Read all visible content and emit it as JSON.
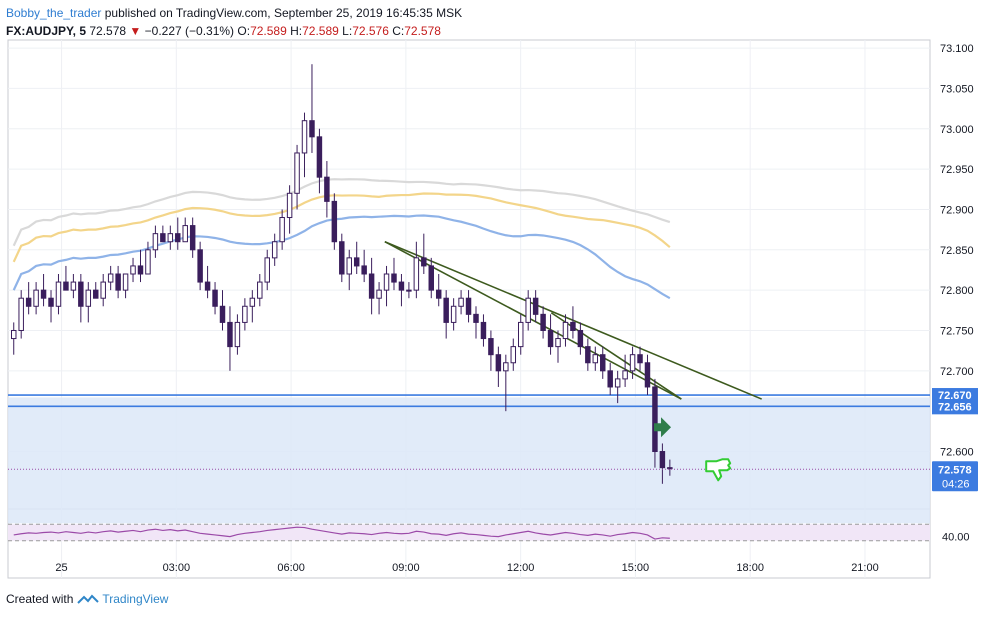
{
  "header": {
    "author": "Bobby_the_trader",
    "published": "published on TradingView.com, September 25, 2019 16:45:35 MSK",
    "symbol": "FX:AUDJPY, 5",
    "last": "72.578",
    "change": "−0.227 (−0.31%)",
    "o_label": "O:",
    "o": "72.589",
    "h_label": "H:",
    "h": "72.589",
    "l_label": "L:",
    "l": "72.576",
    "c_label": "C:",
    "c": "72.578"
  },
  "footer": {
    "created_with": "Created with",
    "brand": "TradingView"
  },
  "colors": {
    "up": "#4a2a72",
    "down": "#3a1e5c",
    "wick": "#3a1e5c",
    "ma_fast": "#8fb3e8",
    "ma_mid": "#f3d58a",
    "ma_slow": "#d9d9d9",
    "trend": "#3d5a1e",
    "level": "#3c7be0",
    "zone": "#dce8f8",
    "rsi": "#9b4aa8",
    "rsi_band": "#f1e6f7",
    "price_label": "#3c7be0",
    "signal_arrow": "#2e7d4a",
    "thumb": "#33cc33"
  },
  "chart_data": {
    "type": "candlestick",
    "ylim": [
      72.53,
      73.11
    ],
    "y_ticks": [
      "73.100",
      "73.050",
      "73.000",
      "72.950",
      "72.900",
      "72.850",
      "72.800",
      "72.750",
      "72.700",
      "72.600"
    ],
    "x_ticks": [
      "25",
      "03:00",
      "06:00",
      "09:00",
      "12:00",
      "15:00",
      "18:00",
      "21:00"
    ],
    "x_tick_hours": [
      0,
      3,
      6,
      9,
      12,
      15,
      18,
      21
    ],
    "x_range_hours": [
      -1.4,
      22.7
    ],
    "levels": [
      72.67,
      72.656
    ],
    "level_labels": [
      "72.670",
      "72.656"
    ],
    "current_price": 72.578,
    "current_label": "72.578",
    "countdown": "04:26",
    "zone": [
      72.511,
      72.667
    ],
    "rsi_tick": "40.00",
    "rsi_bands": [
      70,
      30
    ],
    "trendlines": [
      {
        "from": [
          8.45,
          72.86
        ],
        "to": [
          18.3,
          72.665
        ]
      },
      {
        "from": [
          8.45,
          72.86
        ],
        "to": [
          16.2,
          72.665
        ]
      },
      {
        "from": [
          12.8,
          72.772
        ],
        "to": [
          16.2,
          72.665
        ]
      }
    ],
    "candles": [
      [
        72.74,
        72.76,
        72.72,
        72.75
      ],
      [
        72.75,
        72.8,
        72.74,
        72.79
      ],
      [
        72.79,
        72.81,
        72.77,
        72.78
      ],
      [
        72.78,
        72.81,
        72.77,
        72.8
      ],
      [
        72.8,
        72.82,
        72.78,
        72.79
      ],
      [
        72.79,
        72.8,
        72.76,
        72.78
      ],
      [
        72.78,
        72.82,
        72.77,
        72.81
      ],
      [
        72.81,
        72.83,
        72.8,
        72.8
      ],
      [
        72.8,
        72.82,
        72.79,
        72.81
      ],
      [
        72.81,
        72.82,
        72.76,
        72.78
      ],
      [
        72.78,
        72.81,
        72.76,
        72.8
      ],
      [
        72.8,
        72.81,
        72.79,
        72.79
      ],
      [
        72.79,
        72.82,
        72.78,
        72.81
      ],
      [
        72.81,
        72.83,
        72.8,
        72.82
      ],
      [
        72.82,
        72.83,
        72.79,
        72.8
      ],
      [
        72.8,
        72.82,
        72.79,
        72.82
      ],
      [
        72.82,
        72.84,
        72.81,
        72.83
      ],
      [
        72.83,
        72.85,
        72.81,
        72.82
      ],
      [
        72.82,
        72.86,
        72.82,
        72.85
      ],
      [
        72.85,
        72.88,
        72.84,
        72.87
      ],
      [
        72.87,
        72.88,
        72.86,
        72.86
      ],
      [
        72.86,
        72.88,
        72.85,
        72.87
      ],
      [
        72.87,
        72.89,
        72.85,
        72.86
      ],
      [
        72.86,
        72.89,
        72.86,
        72.88
      ],
      [
        72.88,
        72.89,
        72.84,
        72.85
      ],
      [
        72.85,
        72.86,
        72.8,
        72.81
      ],
      [
        72.81,
        72.83,
        72.79,
        72.8
      ],
      [
        72.8,
        72.81,
        72.77,
        72.78
      ],
      [
        72.78,
        72.8,
        72.75,
        72.76
      ],
      [
        72.76,
        72.78,
        72.7,
        72.73
      ],
      [
        72.73,
        72.77,
        72.72,
        72.76
      ],
      [
        72.76,
        72.79,
        72.75,
        72.78
      ],
      [
        72.78,
        72.8,
        72.76,
        72.79
      ],
      [
        72.79,
        72.82,
        72.78,
        72.81
      ],
      [
        72.81,
        72.85,
        72.8,
        72.84
      ],
      [
        72.84,
        72.87,
        72.83,
        72.86
      ],
      [
        72.86,
        72.9,
        72.85,
        72.89
      ],
      [
        72.89,
        72.93,
        72.87,
        72.92
      ],
      [
        72.92,
        72.98,
        72.9,
        72.97
      ],
      [
        72.97,
        73.02,
        72.94,
        73.01
      ],
      [
        73.01,
        73.08,
        72.97,
        72.99
      ],
      [
        72.99,
        73.0,
        72.92,
        72.94
      ],
      [
        72.94,
        72.96,
        72.89,
        72.91
      ],
      [
        72.91,
        72.92,
        72.85,
        72.86
      ],
      [
        72.86,
        72.87,
        72.81,
        72.82
      ],
      [
        72.82,
        72.85,
        72.8,
        72.84
      ],
      [
        72.84,
        72.86,
        72.82,
        72.83
      ],
      [
        72.83,
        72.85,
        72.81,
        72.82
      ],
      [
        72.82,
        72.84,
        72.77,
        72.79
      ],
      [
        72.79,
        72.81,
        72.77,
        72.8
      ],
      [
        72.8,
        72.83,
        72.78,
        72.82
      ],
      [
        72.82,
        72.84,
        72.8,
        72.81
      ],
      [
        72.81,
        72.82,
        72.78,
        72.8
      ],
      [
        72.8,
        72.81,
        72.79,
        72.8
      ],
      [
        72.8,
        72.86,
        72.79,
        72.84
      ],
      [
        72.84,
        72.87,
        72.82,
        72.83
      ],
      [
        72.83,
        72.84,
        72.79,
        72.8
      ],
      [
        72.8,
        72.82,
        72.78,
        72.79
      ],
      [
        72.79,
        72.8,
        72.74,
        72.76
      ],
      [
        72.76,
        72.79,
        72.75,
        72.78
      ],
      [
        72.78,
        72.8,
        72.77,
        72.79
      ],
      [
        72.79,
        72.8,
        72.76,
        72.77
      ],
      [
        72.77,
        72.78,
        72.74,
        72.76
      ],
      [
        72.76,
        72.77,
        72.73,
        72.74
      ],
      [
        72.74,
        72.75,
        72.7,
        72.72
      ],
      [
        72.72,
        72.73,
        72.68,
        72.7
      ],
      [
        72.7,
        72.72,
        72.65,
        72.71
      ],
      [
        72.71,
        72.74,
        72.7,
        72.73
      ],
      [
        72.73,
        72.77,
        72.72,
        72.76
      ],
      [
        72.76,
        72.8,
        72.75,
        72.79
      ],
      [
        72.79,
        72.8,
        72.76,
        72.77
      ],
      [
        72.77,
        72.78,
        72.74,
        72.75
      ],
      [
        72.75,
        72.77,
        72.72,
        72.73
      ],
      [
        72.73,
        72.75,
        72.71,
        72.74
      ],
      [
        72.74,
        72.77,
        72.73,
        72.76
      ],
      [
        72.76,
        72.78,
        72.74,
        72.75
      ],
      [
        72.75,
        72.76,
        72.72,
        72.73
      ],
      [
        72.73,
        72.74,
        72.7,
        72.71
      ],
      [
        72.71,
        72.73,
        72.7,
        72.72
      ],
      [
        72.72,
        72.73,
        72.69,
        72.7
      ],
      [
        72.7,
        72.71,
        72.67,
        72.68
      ],
      [
        72.68,
        72.7,
        72.66,
        72.69
      ],
      [
        72.69,
        72.72,
        72.68,
        72.7
      ],
      [
        72.7,
        72.73,
        72.69,
        72.72
      ],
      [
        72.72,
        72.73,
        72.7,
        72.71
      ],
      [
        72.71,
        72.72,
        72.67,
        72.68
      ],
      [
        72.68,
        72.69,
        72.58,
        72.6
      ],
      [
        72.6,
        72.61,
        72.56,
        72.58
      ],
      [
        72.58,
        72.59,
        72.57,
        72.58
      ]
    ],
    "rsi_values": [
      44,
      47,
      49,
      48,
      50,
      51,
      49,
      52,
      50,
      48,
      51,
      49,
      52,
      54,
      51,
      53,
      55,
      52,
      56,
      58,
      55,
      57,
      54,
      56,
      52,
      48,
      46,
      44,
      42,
      40,
      45,
      48,
      50,
      52,
      55,
      57,
      59,
      61,
      63,
      62,
      58,
      55,
      52,
      49,
      46,
      49,
      48,
      47,
      45,
      48,
      50,
      48,
      47,
      48,
      53,
      51,
      47,
      46,
      43,
      47,
      49,
      46,
      45,
      43,
      41,
      40,
      44,
      47,
      50,
      53,
      49,
      46,
      44,
      47,
      50,
      48,
      45,
      43,
      46,
      44,
      41,
      45,
      47,
      50,
      48,
      44,
      34,
      37,
      36
    ]
  }
}
